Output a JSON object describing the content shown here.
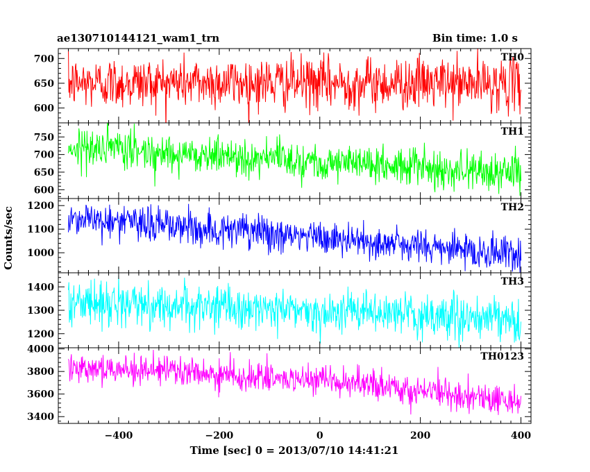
{
  "chart_data": {
    "type": "line",
    "title": "ae130710144121_wam1_trn",
    "subtitle": "Bin time: 1.0 s",
    "xlabel": "Time [sec] 0 = 2013/07/10 14:41:21",
    "ylabel": "Counts/sec",
    "xlim": [
      -520,
      420
    ],
    "x_ticks": [
      -400,
      -200,
      0,
      200,
      400
    ],
    "x_tick_labels": [
      "−400",
      "−200",
      "0",
      "200",
      "400"
    ],
    "grid": false,
    "legend": "none",
    "bin_time_s": 1.0,
    "x_range": [
      -500,
      400
    ],
    "panels": [
      {
        "name": "TH0",
        "color": "#ff0000",
        "ylim": [
          570,
          720
        ],
        "y_ticks": [
          600,
          650,
          700
        ],
        "trend": [
          [
            -500,
            650
          ],
          [
            -250,
            652
          ],
          [
            0,
            650
          ],
          [
            200,
            650
          ],
          [
            400,
            648
          ]
        ],
        "noise_sd": 26
      },
      {
        "name": "TH1",
        "color": "#00ff00",
        "ylim": [
          575,
          790
        ],
        "y_ticks": [
          600,
          650,
          700,
          750
        ],
        "trend": [
          [
            -500,
            722
          ],
          [
            -300,
            705
          ],
          [
            -100,
            690
          ],
          [
            100,
            672
          ],
          [
            300,
            655
          ],
          [
            400,
            645
          ]
        ],
        "noise_sd": 27
      },
      {
        "name": "TH2",
        "color": "#0000ff",
        "ylim": [
          915,
          1230
        ],
        "y_ticks": [
          1000,
          1100,
          1200
        ],
        "trend": [
          [
            -500,
            1150
          ],
          [
            -300,
            1115
          ],
          [
            -100,
            1080
          ],
          [
            100,
            1045
          ],
          [
            300,
            1010
          ],
          [
            400,
            990
          ]
        ],
        "noise_sd": 38
      },
      {
        "name": "TH3",
        "color": "#00ffff",
        "ylim": [
          1140,
          1460
        ],
        "y_ticks": [
          1200,
          1300,
          1400
        ],
        "trend": [
          [
            -500,
            1335
          ],
          [
            -300,
            1320
          ],
          [
            -100,
            1305
          ],
          [
            100,
            1290
          ],
          [
            300,
            1265
          ],
          [
            400,
            1250
          ]
        ],
        "noise_sd": 45
      },
      {
        "name": "TH0123",
        "color": "#ff00ff",
        "ylim": [
          3340,
          4010
        ],
        "y_ticks": [
          3400,
          3600,
          3800,
          4000
        ],
        "trend": [
          [
            -500,
            3850
          ],
          [
            -300,
            3800
          ],
          [
            -100,
            3740
          ],
          [
            100,
            3680
          ],
          [
            300,
            3580
          ],
          [
            400,
            3530
          ]
        ],
        "noise_sd": 65
      }
    ]
  }
}
